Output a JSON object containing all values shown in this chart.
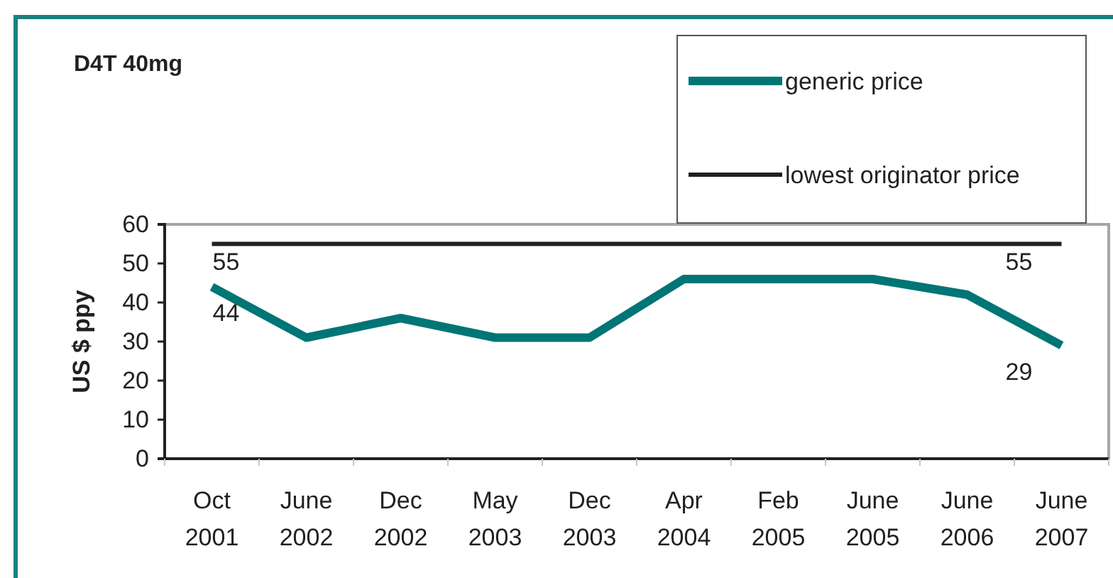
{
  "chart_data": {
    "type": "line",
    "title": "D4T 40mg",
    "ylabel": "US $ ppy",
    "categories": [
      "Oct 2001",
      "June 2002",
      "Dec 2002",
      "May 2003",
      "Dec 2003",
      "Apr 2004",
      "Feb 2005",
      "June 2005",
      "June 2006",
      "June 2007"
    ],
    "series": [
      {
        "name": "generic price",
        "color": "#007575",
        "values": [
          44,
          31,
          36,
          31,
          31,
          46,
          46,
          46,
          42,
          29
        ],
        "value_labels": [
          "44",
          null,
          null,
          null,
          null,
          null,
          null,
          null,
          null,
          "29"
        ]
      },
      {
        "name": "lowest originator price",
        "color": "#231f20",
        "values": [
          55,
          55,
          55,
          55,
          55,
          55,
          55,
          55,
          55,
          55
        ],
        "value_labels": [
          "55",
          null,
          null,
          null,
          null,
          null,
          null,
          null,
          null,
          "55"
        ]
      }
    ],
    "ylim": [
      0,
      60
    ],
    "yticks": [
      0,
      10,
      20,
      30,
      40,
      50,
      60
    ],
    "grid": false,
    "legend": "top right",
    "marker": "none",
    "line_style": "solid"
  }
}
